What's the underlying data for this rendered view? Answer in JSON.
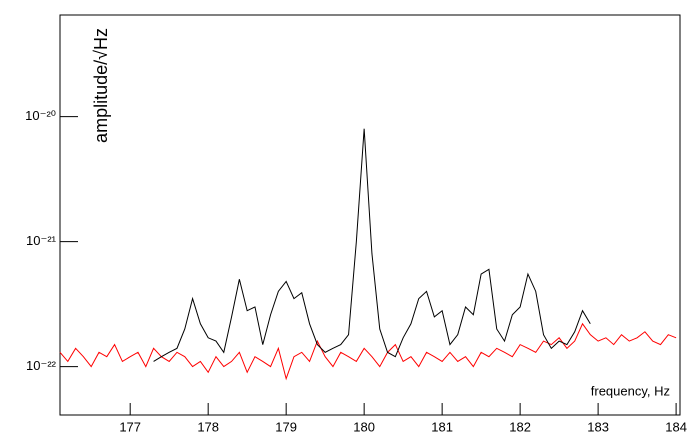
{
  "chart_data": {
    "type": "line",
    "x_label": "frequency, Hz",
    "y_label": "amplitude/√Hz",
    "xlim": [
      176.1,
      184.05
    ],
    "xticks": [
      177,
      178,
      179,
      180,
      181,
      182,
      183,
      184
    ],
    "ylim": [
      4.1e-23,
      6.5e-20
    ],
    "ylog": true,
    "yticks": [
      {
        "value": 1e-22,
        "label": "10⁻²²"
      },
      {
        "value": 1e-21,
        "label": "10⁻²¹"
      },
      {
        "value": 1e-20,
        "label": "10⁻²⁰"
      }
    ],
    "series": [
      {
        "color": "#ff0000",
        "x": [
          176.1,
          176.2,
          176.3,
          176.4,
          176.5,
          176.6,
          176.7,
          176.8,
          176.9,
          177.0,
          177.1,
          177.2,
          177.3,
          177.4,
          177.5,
          177.6,
          177.7,
          177.8,
          177.9,
          178.0,
          178.1,
          178.2,
          178.3,
          178.4,
          178.5,
          178.6,
          178.7,
          178.8,
          178.9,
          179.0,
          179.1,
          179.2,
          179.3,
          179.4,
          179.5,
          179.6,
          179.7,
          179.8,
          179.9,
          180.0,
          180.1,
          180.2,
          180.3,
          180.4,
          180.5,
          180.6,
          180.7,
          180.8,
          180.9,
          181.0,
          181.1,
          181.2,
          181.3,
          181.4,
          181.5,
          181.6,
          181.7,
          181.8,
          181.9,
          182.0,
          182.1,
          182.2,
          182.3,
          182.4,
          182.5,
          182.6,
          182.7,
          182.8,
          182.9,
          183.0,
          183.1,
          183.2,
          183.3,
          183.4,
          183.5,
          183.6,
          183.7,
          183.8,
          183.9,
          184.0
        ],
        "values": [
          1.3e-22,
          1.1e-22,
          1.4e-22,
          1.2e-22,
          1e-22,
          1.3e-22,
          1.2e-22,
          1.5e-22,
          1.1e-22,
          1.2e-22,
          1.3e-22,
          1e-22,
          1.4e-22,
          1.2e-22,
          1.1e-22,
          1.3e-22,
          1.2e-22,
          1e-22,
          1.1e-22,
          9e-23,
          1.2e-22,
          1e-22,
          1.1e-22,
          1.3e-22,
          9e-23,
          1.2e-22,
          1.1e-22,
          1e-22,
          1.4e-22,
          8e-23,
          1.2e-22,
          1.3e-22,
          1.1e-22,
          1.6e-22,
          1.2e-22,
          1e-22,
          1.3e-22,
          1.2e-22,
          1.1e-22,
          1.4e-22,
          1.2e-22,
          1e-22,
          1.3e-22,
          1.5e-22,
          1.1e-22,
          1.2e-22,
          1e-22,
          1.3e-22,
          1.2e-22,
          1.1e-22,
          1.3e-22,
          1.1e-22,
          1.2e-22,
          1e-22,
          1.3e-22,
          1.2e-22,
          1.4e-22,
          1.3e-22,
          1.2e-22,
          1.5e-22,
          1.4e-22,
          1.3e-22,
          1.6e-22,
          1.5e-22,
          1.7e-22,
          1.4e-22,
          1.6e-22,
          2.2e-22,
          1.8e-22,
          1.6e-22,
          1.7e-22,
          1.5e-22,
          1.8e-22,
          1.6e-22,
          1.7e-22,
          1.9e-22,
          1.6e-22,
          1.5e-22,
          1.8e-22,
          1.7e-22
        ]
      },
      {
        "color": "#000000",
        "x": [
          177.3,
          177.4,
          177.5,
          177.6,
          177.7,
          177.8,
          177.9,
          178.0,
          178.1,
          178.2,
          178.3,
          178.4,
          178.5,
          178.6,
          178.7,
          178.8,
          178.9,
          179.0,
          179.1,
          179.2,
          179.3,
          179.4,
          179.5,
          179.6,
          179.7,
          179.8,
          179.9,
          180.0,
          180.1,
          180.2,
          180.3,
          180.4,
          180.5,
          180.6,
          180.7,
          180.8,
          180.9,
          181.0,
          181.1,
          181.2,
          181.3,
          181.4,
          181.5,
          181.6,
          181.7,
          181.8,
          181.9,
          182.0,
          182.1,
          182.2,
          182.3,
          182.4,
          182.5,
          182.6,
          182.7,
          182.8,
          182.9
        ],
        "values": [
          1.1e-22,
          1.2e-22,
          1.3e-22,
          1.4e-22,
          2e-22,
          3.5e-22,
          2.2e-22,
          1.7e-22,
          1.6e-22,
          1.3e-22,
          2.5e-22,
          5e-22,
          2.8e-22,
          3e-22,
          1.5e-22,
          2.6e-22,
          4e-22,
          4.8e-22,
          3.5e-22,
          3.9e-22,
          2.2e-22,
          1.5e-22,
          1.3e-22,
          1.4e-22,
          1.5e-22,
          1.8e-22,
          1e-21,
          8e-21,
          8e-22,
          2e-22,
          1.3e-22,
          1.2e-22,
          1.7e-22,
          2.2e-22,
          3.5e-22,
          4e-22,
          2.5e-22,
          2.8e-22,
          1.5e-22,
          1.8e-22,
          3e-22,
          2.6e-22,
          5.5e-22,
          6e-22,
          2e-22,
          1.6e-22,
          2.6e-22,
          3e-22,
          5.5e-22,
          4e-22,
          1.8e-22,
          1.4e-22,
          1.6e-22,
          1.5e-22,
          1.9e-22,
          2.8e-22,
          2.2e-22
        ]
      }
    ]
  }
}
